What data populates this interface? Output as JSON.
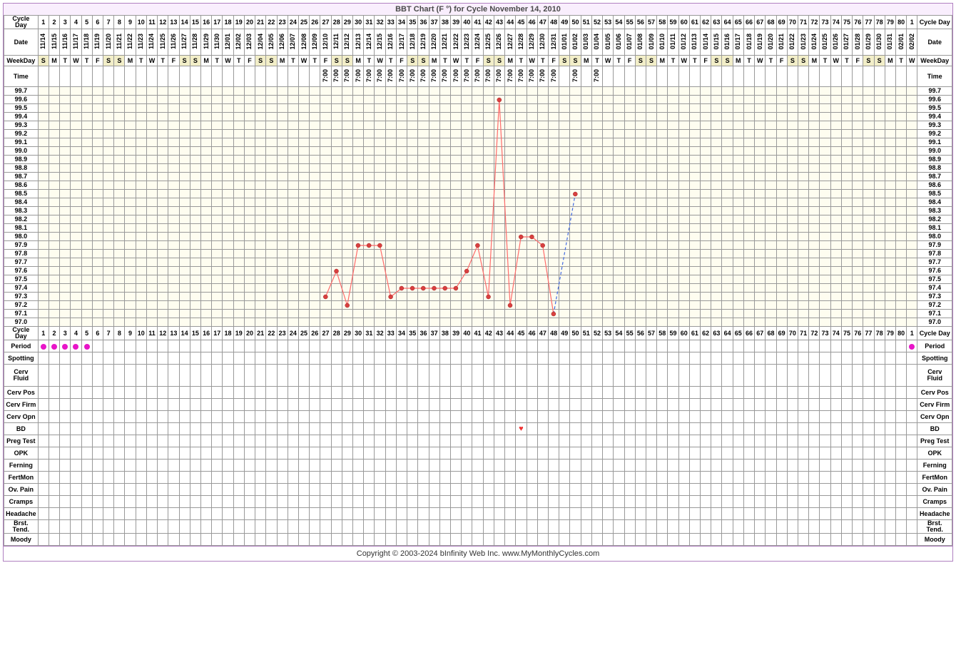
{
  "title": "BBT Chart (F °) for Cycle November 14, 2010",
  "footer": "Copyright © 2003-2024 bInfinity Web Inc.     www.MyMonthlyCycles.com",
  "labels": {
    "cycleDay": "Cycle Day",
    "date": "Date",
    "weekday": "WeekDay",
    "time": "Time",
    "period": "Period",
    "spotting": "Spotting",
    "cervFluid": "Cerv Fluid",
    "cervPos": "Cerv Pos",
    "cervFirm": "Cerv Firm",
    "cervOpn": "Cerv Opn",
    "bd": "BD",
    "pregTest": "Preg Test",
    "opk": "OPK",
    "ferning": "Ferning",
    "fertMon": "FertMon",
    "ovPain": "Ov. Pain",
    "cramps": "Cramps",
    "headache": "Headache",
    "brstTend": "Brst. Tend.",
    "moody": "Moody"
  },
  "chart": {
    "num_cols": 81,
    "cycle_days_top": [
      "1",
      "2",
      "3",
      "4",
      "5",
      "6",
      "7",
      "8",
      "9",
      "10",
      "11",
      "12",
      "13",
      "14",
      "15",
      "16",
      "17",
      "18",
      "19",
      "20",
      "21",
      "22",
      "23",
      "24",
      "25",
      "26",
      "27",
      "28",
      "29",
      "30",
      "31",
      "32",
      "33",
      "34",
      "35",
      "36",
      "37",
      "38",
      "39",
      "40",
      "41",
      "42",
      "43",
      "44",
      "45",
      "46",
      "47",
      "48",
      "49",
      "50",
      "51",
      "52",
      "53",
      "54",
      "55",
      "56",
      "57",
      "58",
      "59",
      "60",
      "61",
      "62",
      "63",
      "64",
      "65",
      "66",
      "67",
      "68",
      "69",
      "70",
      "71",
      "72",
      "73",
      "74",
      "75",
      "76",
      "77",
      "78",
      "79",
      "80",
      "1"
    ],
    "dates": [
      "11/14",
      "11/15",
      "11/16",
      "11/17",
      "11/18",
      "11/19",
      "11/20",
      "11/21",
      "11/22",
      "11/23",
      "11/24",
      "11/25",
      "11/26",
      "11/27",
      "11/28",
      "11/29",
      "11/30",
      "12/01",
      "12/02",
      "12/03",
      "12/04",
      "12/05",
      "12/06",
      "12/07",
      "12/08",
      "12/09",
      "12/10",
      "12/11",
      "12/12",
      "12/13",
      "12/14",
      "12/15",
      "12/16",
      "12/17",
      "12/18",
      "12/19",
      "12/20",
      "12/21",
      "12/22",
      "12/23",
      "12/24",
      "12/25",
      "12/26",
      "12/27",
      "12/28",
      "12/29",
      "12/30",
      "12/31",
      "01/01",
      "01/02",
      "01/03",
      "01/04",
      "01/05",
      "01/06",
      "01/07",
      "01/08",
      "01/09",
      "01/10",
      "01/11",
      "01/12",
      "01/13",
      "01/14",
      "01/15",
      "01/16",
      "01/17",
      "01/18",
      "01/19",
      "01/20",
      "01/21",
      "01/22",
      "01/23",
      "01/24",
      "01/25",
      "01/26",
      "01/27",
      "01/28",
      "01/29",
      "01/30",
      "01/31",
      "02/01",
      "02/02"
    ],
    "weekdays": [
      "S",
      "M",
      "T",
      "W",
      "T",
      "F",
      "S",
      "S",
      "M",
      "T",
      "W",
      "T",
      "F",
      "S",
      "S",
      "M",
      "T",
      "W",
      "T",
      "F",
      "S",
      "S",
      "M",
      "T",
      "W",
      "T",
      "F",
      "S",
      "S",
      "M",
      "T",
      "W",
      "T",
      "F",
      "S",
      "S",
      "M",
      "T",
      "W",
      "T",
      "F",
      "S",
      "S",
      "M",
      "T",
      "W",
      "T",
      "F",
      "S",
      "S",
      "M",
      "T",
      "W",
      "T",
      "F",
      "S",
      "S",
      "M",
      "T",
      "W",
      "T",
      "F",
      "S",
      "S",
      "M",
      "T",
      "W",
      "T",
      "F",
      "S",
      "S",
      "M",
      "T",
      "W",
      "T",
      "F",
      "S",
      "S",
      "M",
      "T",
      "W"
    ],
    "weekend_idx": [
      0,
      6,
      7,
      13,
      14,
      20,
      21,
      27,
      28,
      34,
      35,
      41,
      42,
      48,
      49,
      55,
      56,
      62,
      63,
      69,
      70,
      76,
      77
    ],
    "times": {
      "26": "7:00",
      "27": "7:00",
      "28": "7:00",
      "29": "7:00",
      "30": "7:00",
      "31": "7:00",
      "32": "7:00",
      "33": "7:00",
      "34": "7:00",
      "35": "7:00",
      "36": "7:00",
      "37": "7:00",
      "38": "7:00",
      "39": "7:00",
      "40": "7:00",
      "41": "7:00",
      "42": "7:00",
      "43": "7:00",
      "44": "7:00",
      "45": "7:00",
      "46": "7:00",
      "47": "7:00",
      "49": "7:00",
      "51": "7:00"
    },
    "temp_labels": [
      "99.7",
      "99.6",
      "99.5",
      "99.4",
      "99.3",
      "99.2",
      "99.1",
      "99.0",
      "98.9",
      "98.8",
      "98.7",
      "98.6",
      "98.5",
      "98.4",
      "98.3",
      "98.2",
      "98.1",
      "98.0",
      "97.9",
      "97.8",
      "97.7",
      "97.6",
      "97.5",
      "97.4",
      "97.3",
      "97.2",
      "97.1",
      "97.0"
    ],
    "temp_range": {
      "min": 97.0,
      "max": 99.7,
      "step": 0.1
    },
    "temps": [
      {
        "idx": 26,
        "val": 97.3
      },
      {
        "idx": 27,
        "val": 97.6
      },
      {
        "idx": 28,
        "val": 97.2
      },
      {
        "idx": 29,
        "val": 97.9
      },
      {
        "idx": 30,
        "val": 97.9
      },
      {
        "idx": 31,
        "val": 97.9
      },
      {
        "idx": 32,
        "val": 97.3
      },
      {
        "idx": 33,
        "val": 97.4
      },
      {
        "idx": 34,
        "val": 97.4
      },
      {
        "idx": 35,
        "val": 97.4
      },
      {
        "idx": 36,
        "val": 97.4
      },
      {
        "idx": 37,
        "val": 97.4
      },
      {
        "idx": 38,
        "val": 97.4
      },
      {
        "idx": 39,
        "val": 97.6
      },
      {
        "idx": 40,
        "val": 97.9
      },
      {
        "idx": 41,
        "val": 97.3
      },
      {
        "idx": 42,
        "val": 99.6
      },
      {
        "idx": 43,
        "val": 97.2
      },
      {
        "idx": 44,
        "val": 98.0
      },
      {
        "idx": 45,
        "val": 98.0
      },
      {
        "idx": 46,
        "val": 97.9
      },
      {
        "idx": 47,
        "val": 97.1
      }
    ],
    "dashed_segment": {
      "from_idx": 47,
      "from_val": 97.1,
      "to_idx": 49,
      "to_val": 98.5
    },
    "last_point": {
      "idx": 49,
      "val": 98.5
    },
    "line_color": "#ff6b6b",
    "point_fill": "#d84040",
    "dash_color": "#4169e1",
    "period_days": [
      0,
      1,
      2,
      3,
      4,
      80
    ],
    "bd_days": [
      44
    ]
  }
}
